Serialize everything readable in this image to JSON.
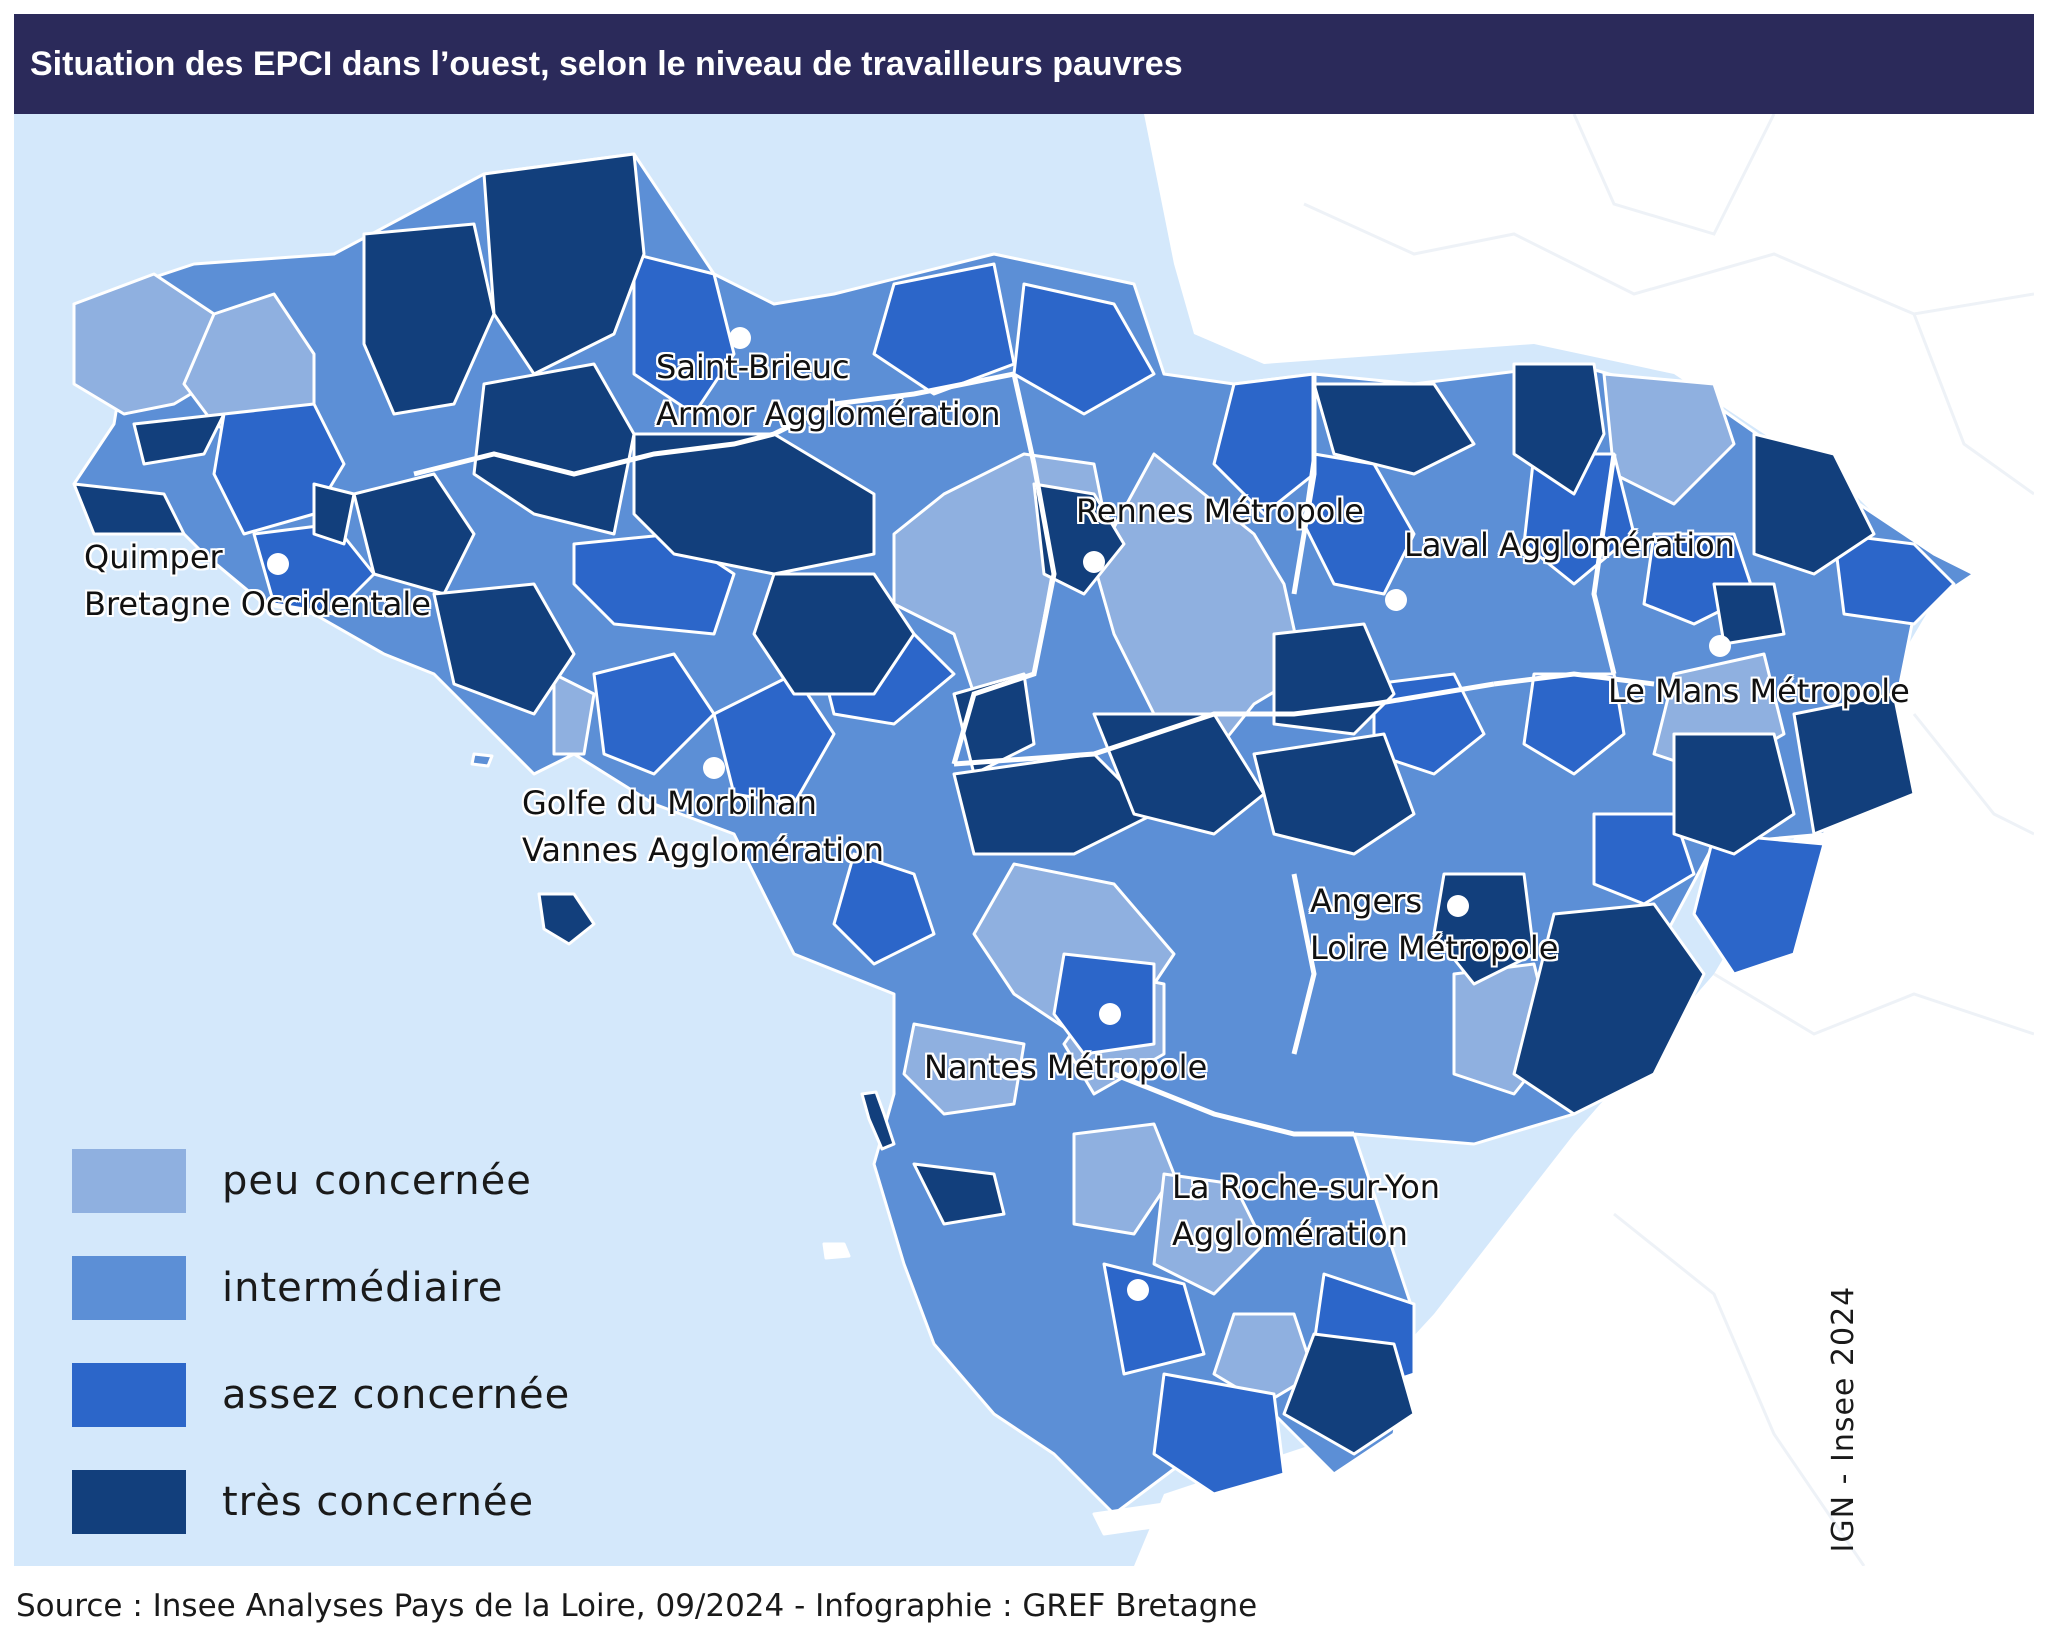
{
  "title": "Situation des EPCI dans l’ouest, selon le niveau de travailleurs pauvres",
  "legend": [
    {
      "label": "peu concernée",
      "color": "#8fb0e0"
    },
    {
      "label": "intermédiaire",
      "color": "#5c8fd6"
    },
    {
      "label": "assez concernée",
      "color": "#2c66c9"
    },
    {
      "label": "très concernée",
      "color": "#123f7c"
    }
  ],
  "colors": {
    "sea": "#d4e8fb",
    "land_outside": "#ffffff",
    "border": "#ffffff",
    "title_bg": "#2b2a5a"
  },
  "cities": [
    {
      "name_lines": [
        "Saint-Brieuc",
        "Armor Agglomération"
      ]
    },
    {
      "name_lines": [
        "Quimper",
        "Bretagne Occidentale"
      ]
    },
    {
      "name_lines": [
        "Rennes Métropole"
      ]
    },
    {
      "name_lines": [
        "Laval Agglomération"
      ]
    },
    {
      "name_lines": [
        "Le Mans Métropole"
      ]
    },
    {
      "name_lines": [
        "Golfe du Morbihan",
        "Vannes Agglomération"
      ]
    },
    {
      "name_lines": [
        "Angers",
        "Loire Métropole"
      ]
    },
    {
      "name_lines": [
        "Nantes Métropole"
      ]
    },
    {
      "name_lines": [
        "La Roche-sur-Yon",
        "Agglomération"
      ]
    }
  ],
  "copyright": "© IGN - Insee 2024",
  "source": "Source : Insee Analyses Pays de la Loire, 09/2024 - Infographie : GREF Bretagne"
}
